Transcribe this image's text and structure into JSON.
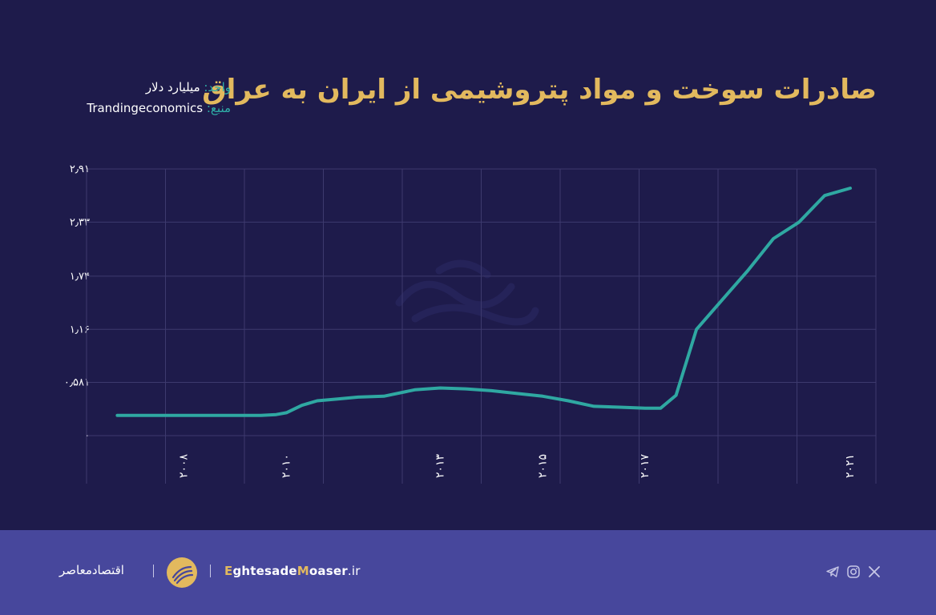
{
  "header": {
    "title": "صادرات سوخت و مواد پتروشیمی از ایران به عراق",
    "unit_key": "واحد:",
    "unit_value": " میلیارد دلار",
    "source_key": "منبع:",
    "source_value": " Trandingeconomics"
  },
  "colors": {
    "background": "#1e1b4b",
    "title": "#e2b95e",
    "line": "#2fa8a2",
    "grid": "#3d3a6e",
    "footer": "#47479c"
  },
  "chart_data": {
    "type": "line",
    "title": "صادرات سوخت و مواد پتروشیمی از ایران به عراق",
    "xlabel": "",
    "ylabel": "",
    "ylim": [
      0,
      2.91
    ],
    "grid": true,
    "yticks": [
      "۰",
      "۰٫۵۸۱",
      "۱٫۱۶",
      "۱٫۷۴",
      "۲٫۳۳",
      "۲٫۹۱"
    ],
    "ytick_values": [
      0,
      0.581,
      1.16,
      1.74,
      2.33,
      2.91
    ],
    "xticks": [
      "۲۰۰۸",
      "۲۰۱۰",
      "۲۰۱۳",
      "۲۰۱۵",
      "۲۰۱۷",
      "۲۰۲۱"
    ],
    "xtick_values": [
      2008,
      2010,
      2013,
      2015,
      2017,
      2021
    ],
    "series": [
      {
        "x": [
          2006.7,
          2007.5,
          2008.5,
          2009.5,
          2009.8,
          2010.0,
          2010.3,
          2010.6,
          2011.0,
          2011.4,
          2011.9,
          2012.5,
          2013.0,
          2013.5,
          2014.0,
          2014.5,
          2015.0,
          2015.5,
          2016.0,
          2016.5,
          2017.0,
          2017.3,
          2017.6,
          2018.0,
          2018.5,
          2019.0,
          2019.5,
          2020.0,
          2020.5,
          2021.0
        ],
        "y": [
          0.22,
          0.22,
          0.22,
          0.22,
          0.23,
          0.25,
          0.33,
          0.38,
          0.4,
          0.42,
          0.43,
          0.5,
          0.52,
          0.51,
          0.49,
          0.46,
          0.43,
          0.38,
          0.32,
          0.31,
          0.3,
          0.3,
          0.44,
          1.16,
          1.48,
          1.8,
          2.15,
          2.33,
          2.62,
          2.7
        ]
      }
    ]
  },
  "footer": {
    "brand": "اقتصادمعاصر",
    "site_part1": "E",
    "site_part2": "ghtesade",
    "site_part3": "M",
    "site_part4": "oaser",
    "site_tld": ".ir"
  },
  "social_icons": [
    "telegram-icon",
    "instagram-icon",
    "x-icon"
  ],
  "watermark_icon": "eghtesade-moaser-watermark-logo"
}
